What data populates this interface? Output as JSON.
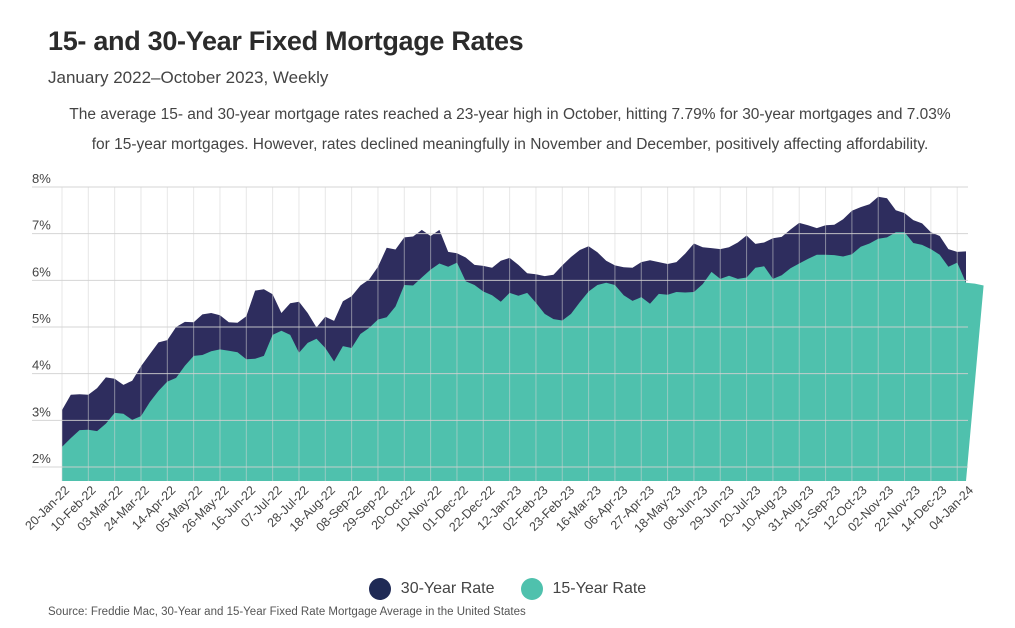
{
  "header": {
    "title": "15- and 30-Year Fixed Mortgage Rates",
    "subtitle": "January 2022–October 2023, Weekly",
    "description": "The average 15- and 30-year mortgage rates reached a 23-year high in October, hitting 7.79% for 30-year mortgages and 7.03% for 15-year mortgages. However, rates declined meaningfully in November and December, positively affecting affordability."
  },
  "legend": [
    {
      "label": "30-Year Rate",
      "color": "#2e2d5e"
    },
    {
      "label": "15-Year Rate",
      "color": "#4fc1ad"
    }
  ],
  "source": "Source:  Freddie Mac, 30-Year  and 15-Year Fixed Rate Mortgage Average in the United States",
  "chart_data": {
    "type": "area",
    "title": "15- and 30-Year Fixed Mortgage Rates",
    "subtitle": "January 2022–October 2023, Weekly",
    "ylim": [
      1.7,
      8.0
    ],
    "y_ticks": [
      "2%",
      "3%",
      "4%",
      "5%",
      "6%",
      "7%",
      "8%"
    ],
    "y_tick_values": [
      2,
      3,
      4,
      5,
      6,
      7,
      8
    ],
    "grid": true,
    "legend_position": "bottom",
    "x_tick_labels": [
      "20-Jan-22",
      "10-Feb-22",
      "03-Mar-22",
      "24-Mar-22",
      "14-Apr-22",
      "05-May-22",
      "26-May-22",
      "16-Jun-22",
      "07-Jul-22",
      "28-Jul-22",
      "18-Aug-22",
      "08-Sep-22",
      "29-Sep-22",
      "20-Oct-22",
      "10-Nov-22",
      "01-Dec-22",
      "22-Dec-22",
      "12-Jan-23",
      "02-Feb-23",
      "23-Feb-23",
      "16-Mar-23",
      "06-Apr-23",
      "27-Apr-23",
      "18-May-23",
      "08-Jun-23",
      "29-Jun-23",
      "20-Jul-23",
      "10-Aug-23",
      "31-Aug-23",
      "21-Sep-23",
      "12-Oct-23",
      "02-Nov-23",
      "22-Nov-23",
      "14-Dec-23",
      "04-Jan-24"
    ],
    "series": [
      {
        "name": "30-Year Rate",
        "color": "#2e2d5e",
        "values": [
          3.22,
          3.55,
          3.56,
          3.55,
          3.69,
          3.92,
          3.89,
          3.76,
          3.85,
          4.16,
          4.42,
          4.67,
          4.72,
          5.0,
          5.11,
          5.1,
          5.27,
          5.3,
          5.25,
          5.1,
          5.09,
          5.23,
          5.78,
          5.81,
          5.7,
          5.3,
          5.51,
          5.54,
          5.3,
          4.99,
          5.22,
          5.13,
          5.55,
          5.66,
          5.89,
          6.02,
          6.29,
          6.7,
          6.66,
          6.92,
          6.94,
          7.08,
          6.95,
          7.08,
          6.61,
          6.58,
          6.49,
          6.33,
          6.31,
          6.27,
          6.42,
          6.48,
          6.33,
          6.15,
          6.13,
          6.09,
          6.12,
          6.32,
          6.5,
          6.65,
          6.73,
          6.6,
          6.42,
          6.32,
          6.28,
          6.27,
          6.39,
          6.43,
          6.39,
          6.35,
          6.39,
          6.57,
          6.79,
          6.71,
          6.69,
          6.67,
          6.71,
          6.81,
          6.96,
          6.78,
          6.81,
          6.9,
          6.93,
          7.09,
          7.23,
          7.18,
          7.12,
          7.18,
          7.19,
          7.31,
          7.49,
          7.57,
          7.63,
          7.79,
          7.76,
          7.5,
          7.44,
          7.29,
          7.22,
          7.03,
          6.95,
          6.67,
          6.61,
          6.62
        ]
      },
      {
        "name": "15-Year Rate",
        "color": "#4fc1ad",
        "values": [
          2.43,
          2.62,
          2.79,
          2.8,
          2.77,
          2.93,
          3.16,
          3.14,
          3.01,
          3.09,
          3.39,
          3.63,
          3.83,
          3.91,
          4.17,
          4.38,
          4.4,
          4.48,
          4.52,
          4.49,
          4.46,
          4.31,
          4.32,
          4.38,
          4.83,
          4.92,
          4.83,
          4.45,
          4.66,
          4.75,
          4.55,
          4.26,
          4.59,
          4.55,
          4.85,
          4.98,
          5.16,
          5.21,
          5.44,
          5.9,
          5.89,
          6.06,
          6.23,
          6.36,
          6.29,
          6.38,
          5.98,
          5.9,
          5.76,
          5.68,
          5.54,
          5.73,
          5.67,
          5.73,
          5.52,
          5.28,
          5.17,
          5.14,
          5.28,
          5.53,
          5.76,
          5.9,
          5.95,
          5.9,
          5.68,
          5.56,
          5.64,
          5.5,
          5.71,
          5.69,
          5.75,
          5.74,
          5.75,
          5.92,
          6.18,
          6.03,
          6.1,
          6.03,
          6.06,
          6.27,
          6.3,
          6.03,
          6.11,
          6.26,
          6.36,
          6.46,
          6.55,
          6.55,
          6.54,
          6.51,
          6.56,
          6.72,
          6.79,
          6.89,
          6.92,
          7.03,
          7.03,
          6.8,
          6.76,
          6.67,
          6.55,
          6.29,
          6.38,
          5.95,
          5.93,
          5.89
        ]
      }
    ]
  }
}
